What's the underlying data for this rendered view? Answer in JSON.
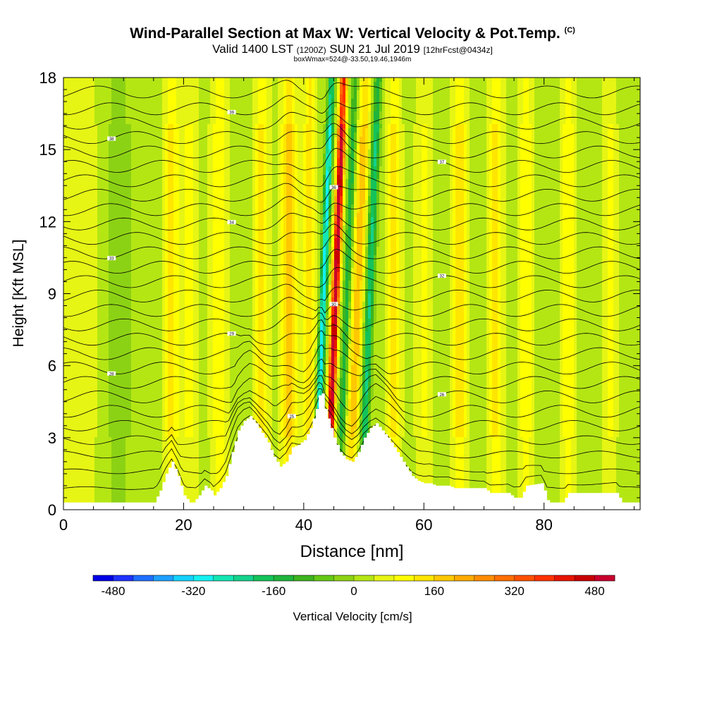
{
  "header": {
    "title_main": "Wind-Parallel Section at Max W: Vertical Velocity & Pot.Temp.",
    "title_mark": "(C)",
    "valid_a": "Valid 1400 LST ",
    "valid_utc": "(1200Z)",
    "valid_b": " SUN 21 Jul 2019 ",
    "forecast": "[12hrFcst@0434z]",
    "boxwmax": "boxWmax=524@-33.50,19.46,1946m"
  },
  "chart_data": {
    "type": "heatmap",
    "xlabel": "Distance [nm]",
    "ylabel": "Height [Kft MSL]",
    "xlim": [
      0,
      96
    ],
    "ylim": [
      0,
      18
    ],
    "x_ticks": [
      0,
      20,
      40,
      60,
      80
    ],
    "y_ticks": [
      0,
      3,
      6,
      9,
      12,
      15,
      18
    ],
    "colorbar": {
      "label": "Vertical Velocity [cm/s]",
      "range": [
        -520,
        520
      ],
      "ticks": [
        -480,
        -320,
        -160,
        0,
        160,
        320,
        480
      ],
      "colors": [
        "#0000e6",
        "#1e32ff",
        "#1e6eff",
        "#1ea0ff",
        "#14d2ff",
        "#14f0f0",
        "#14e6b4",
        "#14d28c",
        "#14c35a",
        "#1eb43c",
        "#3cb41e",
        "#64c814",
        "#8cd214",
        "#b4e614",
        "#e6f514",
        "#ffff00",
        "#ffe600",
        "#ffc800",
        "#ffaa00",
        "#ff8c00",
        "#ff6e00",
        "#ff5000",
        "#ff3200",
        "#e61400",
        "#c80000",
        "#c8002d"
      ]
    },
    "max_w": {
      "value": 524,
      "units": "cm/s",
      "lat": -33.5,
      "lon": 19.46,
      "height_m": 1946
    },
    "w_plumes": [
      {
        "x": 3,
        "w": 28,
        "amp": 50
      },
      {
        "x": 9,
        "w": 28,
        "amp": -40
      },
      {
        "x": 18,
        "w": 10,
        "amp": 110
      },
      {
        "x": 21,
        "w": 10,
        "amp": 70
      },
      {
        "x": 26,
        "w": 12,
        "amp": 90
      },
      {
        "x": 33,
        "w": 10,
        "amp": 110
      },
      {
        "x": 37.5,
        "w": 10,
        "amp": 170
      },
      {
        "x": 41,
        "w": 8,
        "amp": 130
      },
      {
        "x": 43.3,
        "w": 5,
        "amp": -330
      },
      {
        "x": 45.3,
        "w": 5,
        "amp": 520
      },
      {
        "x": 47.2,
        "w": 5,
        "amp": -180
      },
      {
        "x": 49,
        "w": 8,
        "amp": 170
      },
      {
        "x": 51,
        "w": 6,
        "amp": -230
      },
      {
        "x": 55,
        "w": 10,
        "amp": 110
      },
      {
        "x": 60,
        "w": 12,
        "amp": 60
      },
      {
        "x": 66,
        "w": 10,
        "amp": 120
      },
      {
        "x": 72,
        "w": 10,
        "amp": 110
      },
      {
        "x": 77,
        "w": 10,
        "amp": 80
      },
      {
        "x": 84,
        "w": 10,
        "amp": 90
      },
      {
        "x": 91,
        "w": 10,
        "amp": 60
      }
    ],
    "terrain_kft": [
      [
        0,
        0.3
      ],
      [
        15,
        0.3
      ],
      [
        16,
        0.8
      ],
      [
        17,
        1.5
      ],
      [
        18,
        2.0
      ],
      [
        19,
        1.4
      ],
      [
        20,
        0.6
      ],
      [
        21,
        0.3
      ],
      [
        21.5,
        0.3
      ],
      [
        22.5,
        0.6
      ],
      [
        23.5,
        1.0
      ],
      [
        24.5,
        0.8
      ],
      [
        25,
        0.6
      ],
      [
        26,
        0.9
      ],
      [
        27,
        1.4
      ],
      [
        28,
        2.4
      ],
      [
        29,
        3.3
      ],
      [
        30,
        3.7
      ],
      [
        31,
        3.9
      ],
      [
        32,
        3.6
      ],
      [
        33,
        3.2
      ],
      [
        34,
        2.8
      ],
      [
        35,
        2.2
      ],
      [
        36,
        1.8
      ],
      [
        37,
        2.0
      ],
      [
        38,
        2.6
      ],
      [
        39,
        2.7
      ],
      [
        40,
        2.9
      ],
      [
        41,
        3.4
      ],
      [
        42,
        4.2
      ],
      [
        42.8,
        5.1
      ],
      [
        43.5,
        4.2
      ],
      [
        44,
        3.8
      ],
      [
        45,
        3.0
      ],
      [
        46,
        2.4
      ],
      [
        47,
        2.1
      ],
      [
        48,
        2.0
      ],
      [
        49,
        2.4
      ],
      [
        50,
        3.0
      ],
      [
        51,
        3.4
      ],
      [
        52,
        3.6
      ],
      [
        53,
        3.3
      ],
      [
        54,
        3.0
      ],
      [
        55,
        2.6
      ],
      [
        56,
        2.2
      ],
      [
        57,
        1.8
      ],
      [
        58,
        1.4
      ],
      [
        59,
        1.2
      ],
      [
        60,
        1.1
      ],
      [
        61,
        1.1
      ],
      [
        62,
        1.0
      ],
      [
        64,
        1.0
      ],
      [
        65,
        0.9
      ],
      [
        70,
        0.9
      ],
      [
        71,
        0.7
      ],
      [
        74,
        0.7
      ],
      [
        75,
        0.5
      ],
      [
        76,
        0.5
      ],
      [
        77,
        1.0
      ],
      [
        79.5,
        1.1
      ],
      [
        80,
        0.8
      ],
      [
        80.5,
        0.4
      ],
      [
        81,
        0.3
      ],
      [
        83,
        0.3
      ],
      [
        84,
        0.7
      ],
      [
        92,
        0.7
      ],
      [
        93,
        0.3
      ],
      [
        96,
        0.3
      ]
    ],
    "theta_contours": [
      {
        "base": 0.9,
        "label": ""
      },
      {
        "base": 1.6,
        "label": ""
      },
      {
        "base": 2.3,
        "label": ""
      },
      {
        "base": 2.9,
        "label": "25"
      },
      {
        "base": 3.5,
        "label": ""
      },
      {
        "base": 4.1,
        "label": ""
      },
      {
        "base": 4.7,
        "label": "26"
      },
      {
        "base": 5.3,
        "label": ""
      },
      {
        "base": 5.9,
        "label": "28"
      },
      {
        "base": 6.5,
        "label": ""
      },
      {
        "base": 7.1,
        "label": "29"
      },
      {
        "base": 7.7,
        "label": ""
      },
      {
        "base": 8.3,
        "label": "30"
      },
      {
        "base": 8.9,
        "label": ""
      },
      {
        "base": 9.5,
        "label": "32"
      },
      {
        "base": 10.1,
        "label": ""
      },
      {
        "base": 10.7,
        "label": "33"
      },
      {
        "base": 11.3,
        "label": ""
      },
      {
        "base": 11.9,
        "label": "34"
      },
      {
        "base": 12.5,
        "label": ""
      },
      {
        "base": 13.1,
        "label": "36"
      },
      {
        "base": 13.7,
        "label": ""
      },
      {
        "base": 14.3,
        "label": "37"
      },
      {
        "base": 14.9,
        "label": ""
      },
      {
        "base": 15.5,
        "label": "38"
      },
      {
        "base": 16.1,
        "label": ""
      },
      {
        "base": 16.7,
        "label": "39"
      },
      {
        "base": 17.4,
        "label": ""
      }
    ]
  }
}
